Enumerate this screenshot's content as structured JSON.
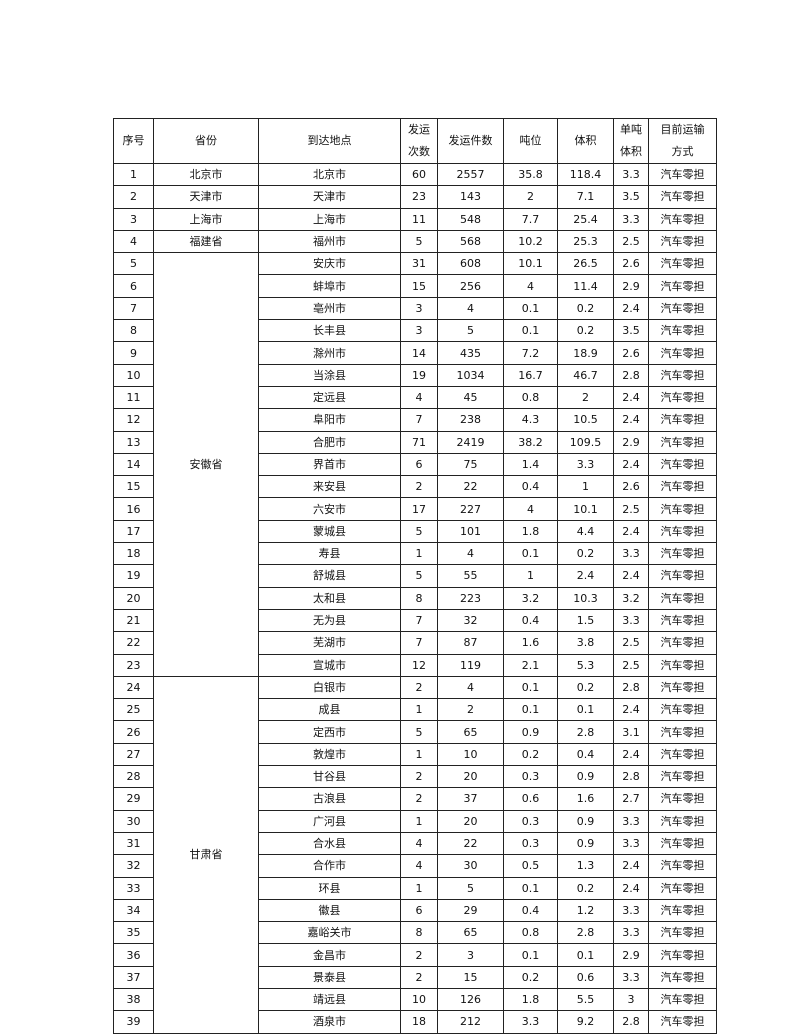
{
  "table": {
    "headers": [
      "序号",
      "省份",
      "到达地点",
      "发运\n次数",
      "发运件数",
      "吨位",
      "体积",
      "单吨\n体积",
      "目前运输\n方式"
    ],
    "groups": [
      {
        "province": "北京市",
        "rows": [
          [
            "1",
            "北京市",
            "60",
            "2557",
            "35.8",
            "118.4",
            "3.3",
            "汽车零担"
          ]
        ]
      },
      {
        "province": "天津市",
        "rows": [
          [
            "2",
            "天津市",
            "23",
            "143",
            "2",
            "7.1",
            "3.5",
            "汽车零担"
          ]
        ]
      },
      {
        "province": "上海市",
        "rows": [
          [
            "3",
            "上海市",
            "11",
            "548",
            "7.7",
            "25.4",
            "3.3",
            "汽车零担"
          ]
        ]
      },
      {
        "province": "福建省",
        "rows": [
          [
            "4",
            "福州市",
            "5",
            "568",
            "10.2",
            "25.3",
            "2.5",
            "汽车零担"
          ]
        ]
      },
      {
        "province": "安徽省",
        "rows": [
          [
            "5",
            "安庆市",
            "31",
            "608",
            "10.1",
            "26.5",
            "2.6",
            "汽车零担"
          ],
          [
            "6",
            "蚌埠市",
            "15",
            "256",
            "4",
            "11.4",
            "2.9",
            "汽车零担"
          ],
          [
            "7",
            "亳州市",
            "3",
            "4",
            "0.1",
            "0.2",
            "2.4",
            "汽车零担"
          ],
          [
            "8",
            "长丰县",
            "3",
            "5",
            "0.1",
            "0.2",
            "3.5",
            "汽车零担"
          ],
          [
            "9",
            "滁州市",
            "14",
            "435",
            "7.2",
            "18.9",
            "2.6",
            "汽车零担"
          ],
          [
            "10",
            "当涂县",
            "19",
            "1034",
            "16.7",
            "46.7",
            "2.8",
            "汽车零担"
          ],
          [
            "11",
            "定远县",
            "4",
            "45",
            "0.8",
            "2",
            "2.4",
            "汽车零担"
          ],
          [
            "12",
            "阜阳市",
            "7",
            "238",
            "4.3",
            "10.5",
            "2.4",
            "汽车零担"
          ],
          [
            "13",
            "合肥市",
            "71",
            "2419",
            "38.2",
            "109.5",
            "2.9",
            "汽车零担"
          ],
          [
            "14",
            "界首市",
            "6",
            "75",
            "1.4",
            "3.3",
            "2.4",
            "汽车零担"
          ],
          [
            "15",
            "来安县",
            "2",
            "22",
            "0.4",
            "1",
            "2.6",
            "汽车零担"
          ],
          [
            "16",
            "六安市",
            "17",
            "227",
            "4",
            "10.1",
            "2.5",
            "汽车零担"
          ],
          [
            "17",
            "蒙城县",
            "5",
            "101",
            "1.8",
            "4.4",
            "2.4",
            "汽车零担"
          ],
          [
            "18",
            "寿县",
            "1",
            "4",
            "0.1",
            "0.2",
            "3.3",
            "汽车零担"
          ],
          [
            "19",
            "舒城县",
            "5",
            "55",
            "1",
            "2.4",
            "2.4",
            "汽车零担"
          ],
          [
            "20",
            "太和县",
            "8",
            "223",
            "3.2",
            "10.3",
            "3.2",
            "汽车零担"
          ],
          [
            "21",
            "无为县",
            "7",
            "32",
            "0.4",
            "1.5",
            "3.3",
            "汽车零担"
          ],
          [
            "22",
            "芜湖市",
            "7",
            "87",
            "1.6",
            "3.8",
            "2.5",
            "汽车零担"
          ],
          [
            "23",
            "宣城市",
            "12",
            "119",
            "2.1",
            "5.3",
            "2.5",
            "汽车零担"
          ]
        ]
      },
      {
        "province": "甘肃省",
        "rows": [
          [
            "24",
            "白银市",
            "2",
            "4",
            "0.1",
            "0.2",
            "2.8",
            "汽车零担"
          ],
          [
            "25",
            "成县",
            "1",
            "2",
            "0.1",
            "0.1",
            "2.4",
            "汽车零担"
          ],
          [
            "26",
            "定西市",
            "5",
            "65",
            "0.9",
            "2.8",
            "3.1",
            "汽车零担"
          ],
          [
            "27",
            "敦煌市",
            "1",
            "10",
            "0.2",
            "0.4",
            "2.4",
            "汽车零担"
          ],
          [
            "28",
            "甘谷县",
            "2",
            "20",
            "0.3",
            "0.9",
            "2.8",
            "汽车零担"
          ],
          [
            "29",
            "古浪县",
            "2",
            "37",
            "0.6",
            "1.6",
            "2.7",
            "汽车零担"
          ],
          [
            "30",
            "广河县",
            "1",
            "20",
            "0.3",
            "0.9",
            "3.3",
            "汽车零担"
          ],
          [
            "31",
            "合水县",
            "4",
            "22",
            "0.3",
            "0.9",
            "3.3",
            "汽车零担"
          ],
          [
            "32",
            "合作市",
            "4",
            "30",
            "0.5",
            "1.3",
            "2.4",
            "汽车零担"
          ],
          [
            "33",
            "环县",
            "1",
            "5",
            "0.1",
            "0.2",
            "2.4",
            "汽车零担"
          ],
          [
            "34",
            "徽县",
            "6",
            "29",
            "0.4",
            "1.2",
            "3.3",
            "汽车零担"
          ],
          [
            "35",
            "嘉峪关市",
            "8",
            "65",
            "0.8",
            "2.8",
            "3.3",
            "汽车零担"
          ],
          [
            "36",
            "金昌市",
            "2",
            "3",
            "0.1",
            "0.1",
            "2.9",
            "汽车零担"
          ],
          [
            "37",
            "景泰县",
            "2",
            "15",
            "0.2",
            "0.6",
            "3.3",
            "汽车零担"
          ],
          [
            "38",
            "靖远县",
            "10",
            "126",
            "1.8",
            "5.5",
            "3",
            "汽车零担"
          ],
          [
            "39",
            "酒泉市",
            "18",
            "212",
            "3.3",
            "9.2",
            "2.8",
            "汽车零担"
          ]
        ]
      }
    ]
  }
}
